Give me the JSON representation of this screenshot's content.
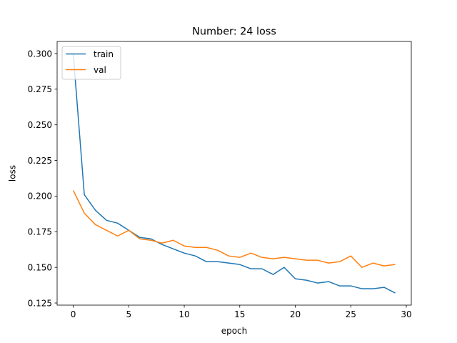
{
  "chart_data": {
    "type": "line",
    "title": "Number: 24 loss",
    "xlabel": "epoch",
    "ylabel": "loss",
    "xlim": [
      -1.45,
      30.45
    ],
    "ylim": [
      0.1235,
      0.3085
    ],
    "xticks": [
      0,
      5,
      10,
      15,
      20,
      25,
      30
    ],
    "yticks": [
      0.125,
      0.15,
      0.175,
      0.2,
      0.225,
      0.25,
      0.275,
      0.3
    ],
    "xtick_labels": [
      "0",
      "5",
      "10",
      "15",
      "20",
      "25",
      "30"
    ],
    "ytick_labels": [
      "0.125",
      "0.150",
      "0.175",
      "0.200",
      "0.225",
      "0.250",
      "0.275",
      "0.300"
    ],
    "grid": false,
    "legend_position": "top-left",
    "x": [
      0,
      1,
      2,
      3,
      4,
      5,
      6,
      7,
      8,
      9,
      10,
      11,
      12,
      13,
      14,
      15,
      16,
      17,
      18,
      19,
      20,
      21,
      22,
      23,
      24,
      25,
      26,
      27,
      28,
      29
    ],
    "series": [
      {
        "name": "train",
        "color": "#1f77b4",
        "values": [
          0.3,
          0.201,
          0.19,
          0.183,
          0.181,
          0.176,
          0.171,
          0.17,
          0.166,
          0.163,
          0.16,
          0.158,
          0.154,
          0.154,
          0.153,
          0.152,
          0.149,
          0.149,
          0.145,
          0.15,
          0.142,
          0.141,
          0.139,
          0.14,
          0.137,
          0.137,
          0.135,
          0.135,
          0.136,
          0.132
        ]
      },
      {
        "name": "val",
        "color": "#ff7f0e",
        "values": [
          0.204,
          0.188,
          0.18,
          0.176,
          0.172,
          0.176,
          0.17,
          0.169,
          0.167,
          0.169,
          0.165,
          0.164,
          0.164,
          0.162,
          0.158,
          0.157,
          0.16,
          0.157,
          0.156,
          0.157,
          0.156,
          0.155,
          0.155,
          0.153,
          0.154,
          0.158,
          0.15,
          0.153,
          0.151,
          0.152
        ]
      }
    ]
  }
}
